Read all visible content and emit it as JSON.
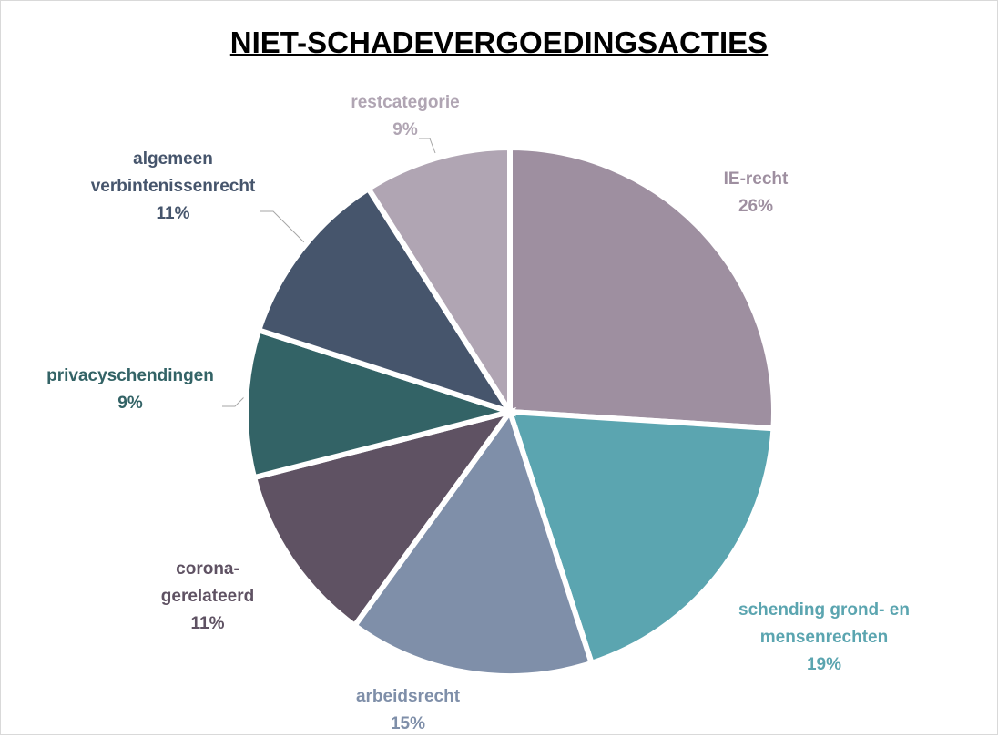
{
  "chart_data": {
    "type": "pie",
    "title": "NIET-SCHADEVERGOEDINGSACTIES",
    "categories": [
      "IE-recht",
      "schending grond- en mensenrechten",
      "arbeidsrecht",
      "corona-gerelateerd",
      "privacyschendingen",
      "algemeen verbintenissenrecht",
      "restcategorie"
    ],
    "values": [
      26,
      19,
      15,
      11,
      9,
      11,
      9
    ],
    "value_labels": [
      "26%",
      "19%",
      "15%",
      "11%",
      "9%",
      "11%",
      "9%"
    ],
    "colors": [
      "#9e8fa0",
      "#5ba5b0",
      "#7f8fa9",
      "#5f5263",
      "#336366",
      "#46556c",
      "#b0a5b3"
    ]
  }
}
